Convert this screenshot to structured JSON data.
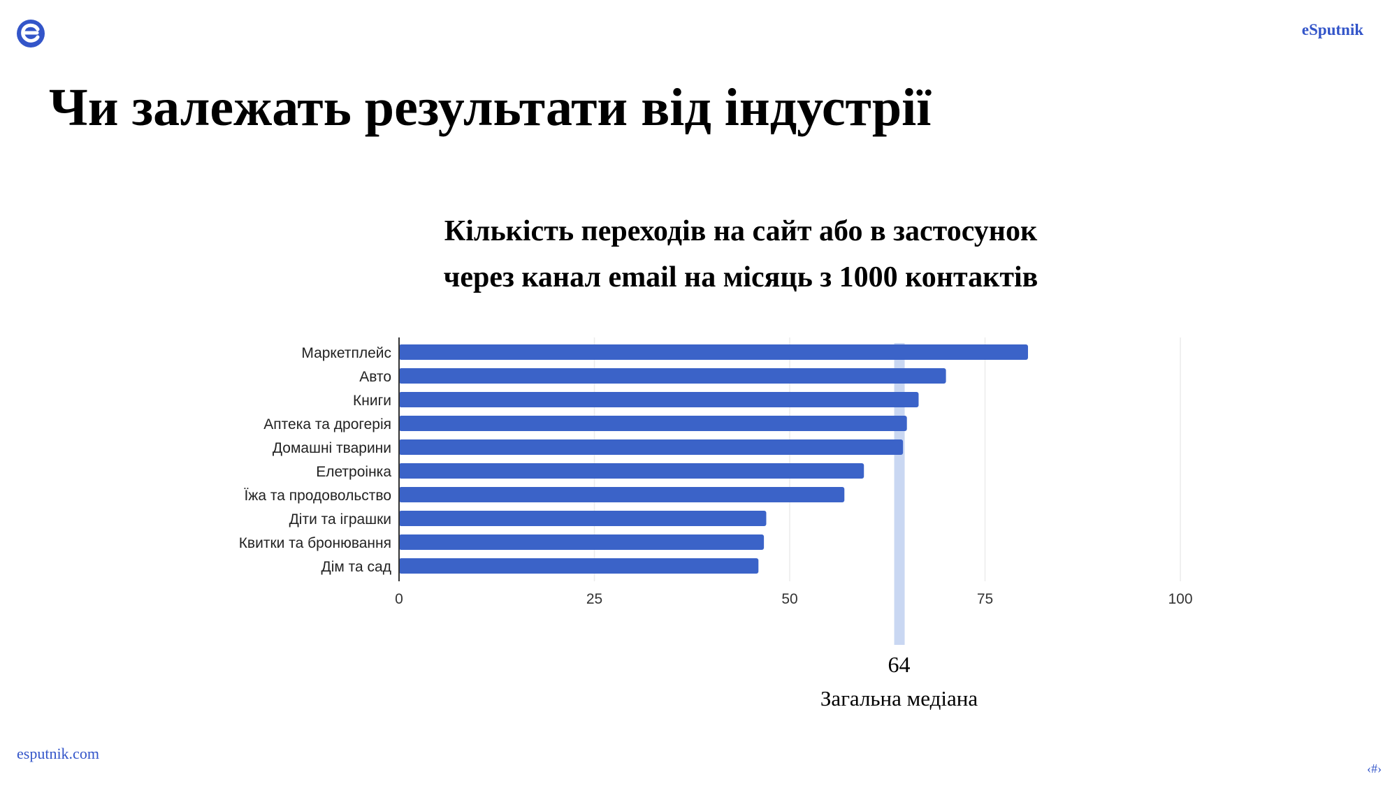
{
  "header": {
    "brand": "eSputnik",
    "logo_icon": "esputnik-logo-icon"
  },
  "page": {
    "title": "Чи залежать результати від індустрії"
  },
  "footer": {
    "link": "esputnik.com",
    "page_number": "‹#›"
  },
  "colors": {
    "bar": "#3b63c8",
    "median_band": "#c9d7f2",
    "brand": "#3355c9",
    "grid": "#ececec"
  },
  "chart_data": {
    "type": "bar",
    "orientation": "horizontal",
    "title_lines": [
      "Кількість переходів на сайт або в застосунок",
      "через канал email на місяць з 1000 контактів"
    ],
    "categories": [
      "Маркетплейс",
      "Авто",
      "Книги",
      "Аптека та дрогерія",
      "Домашні тварини",
      "Елетроінка",
      "Їжа та продовольство",
      "Діти та іграшки",
      "Квитки та бронювання",
      "Дім та сад"
    ],
    "values": [
      80.5,
      70,
      66.5,
      65,
      64.5,
      59.5,
      57,
      47,
      46.7,
      46
    ],
    "xlim": [
      0,
      100
    ],
    "xticks": [
      "0",
      "25",
      "50",
      "75",
      "100"
    ],
    "grid": true,
    "median": {
      "value": 64,
      "value_label": "64",
      "label": "Загальна медіана"
    }
  }
}
